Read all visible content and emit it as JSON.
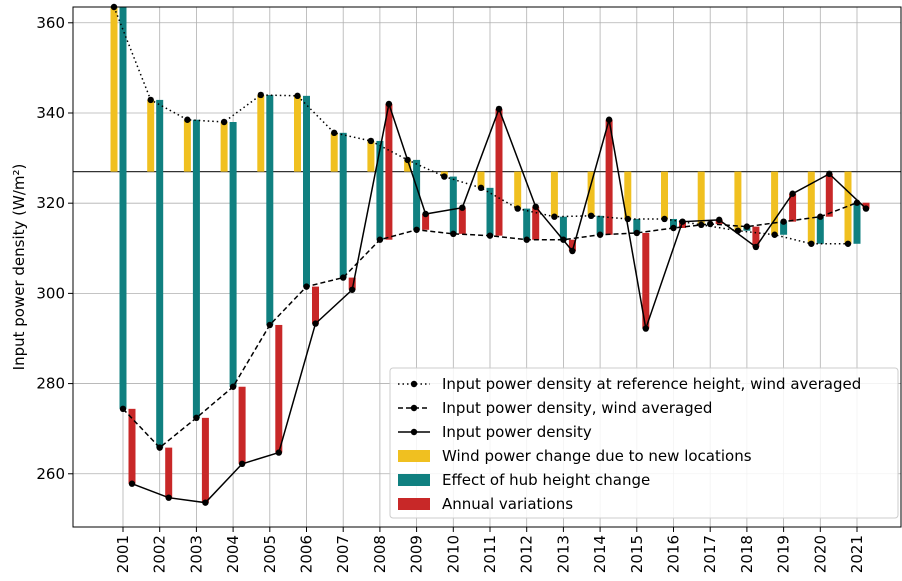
{
  "chart_data": {
    "type": "bar-line",
    "y_label": "Input power density (W/m²)",
    "categories": [
      "2001",
      "2002",
      "2003",
      "2004",
      "2005",
      "2006",
      "2007",
      "2008",
      "2009",
      "2010",
      "2011",
      "2012",
      "2013",
      "2014",
      "2015",
      "2016",
      "2017",
      "2018",
      "2019",
      "2020",
      "2021"
    ],
    "baseline": 327,
    "series": [
      {
        "name": "Input power density at reference height, wind averaged",
        "color": "#000000",
        "style": "dotted",
        "values": [
          363.5,
          342.9,
          338.5,
          338.0,
          344.0,
          343.8,
          335.6,
          333.8,
          329.6,
          325.9,
          323.4,
          318.8,
          317.0,
          317.2,
          316.5,
          316.5,
          315.2,
          313.9,
          313.0,
          311.0,
          311.0
        ]
      },
      {
        "name": "Input power density, wind averaged",
        "color": "#000000",
        "style": "dashed",
        "values": [
          274.4,
          265.8,
          272.4,
          279.3,
          293.0,
          301.5,
          303.5,
          311.9,
          314.1,
          313.2,
          312.8,
          311.9,
          311.9,
          313.0,
          313.4,
          314.5,
          315.4,
          314.8,
          315.9,
          317.0,
          320.1
        ]
      },
      {
        "name": "Input power density",
        "color": "#000000",
        "style": "solid",
        "values": [
          257.8,
          254.7,
          253.6,
          262.2,
          264.7,
          293.3,
          300.8,
          342.0,
          317.6,
          319.0,
          340.9,
          319.2,
          309.4,
          338.5,
          292.2,
          315.9,
          316.3,
          310.3,
          322.1,
          326.5,
          318.8
        ]
      }
    ],
    "bar_series": [
      {
        "name": "Wind power change due to new locations",
        "color": "#f0c020"
      },
      {
        "name": "Effect of hub height change",
        "color": "#108080"
      },
      {
        "name": "Annual variations",
        "color": "#c82828"
      }
    ],
    "ylim": [
      248.2,
      363.5
    ],
    "yticks": [
      260,
      280,
      300,
      320,
      340,
      360
    ],
    "grid": true,
    "legend": "lower right"
  }
}
